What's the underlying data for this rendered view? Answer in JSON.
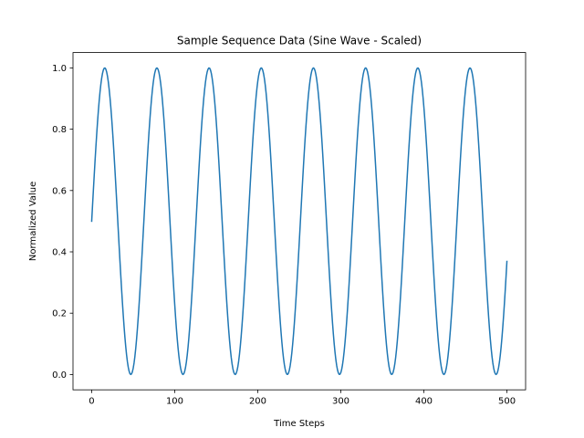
{
  "chart_data": {
    "type": "line",
    "title": "Sample Sequence Data (Sine Wave - Scaled)",
    "xlabel": "Time Steps",
    "ylabel": "Normalized Value",
    "xlim": [
      -22.5,
      522.5
    ],
    "ylim": [
      -0.05,
      1.05
    ],
    "x_ticks": [
      0,
      100,
      200,
      300,
      400,
      500
    ],
    "x_tick_labels": [
      "0",
      "100",
      "200",
      "300",
      "400",
      "500"
    ],
    "y_ticks": [
      0.0,
      0.2,
      0.4,
      0.6,
      0.8,
      1.0
    ],
    "y_tick_labels": [
      "0.0",
      "0.2",
      "0.4",
      "0.6",
      "0.8",
      "1.0"
    ],
    "grid": false,
    "series": [
      {
        "color": "#1f77b4",
        "function": "0.5 + 0.5*sin(0.1*t)",
        "x_start": 0,
        "x_end": 500,
        "x_step": 1,
        "sample_points": [
          {
            "x": 0,
            "y": 0.5
          },
          {
            "x": 16,
            "y": 1.0
          },
          {
            "x": 47,
            "y": 0.0
          },
          {
            "x": 79,
            "y": 1.0
          },
          {
            "x": 110,
            "y": 0.0
          },
          {
            "x": 141,
            "y": 1.0
          },
          {
            "x": 173,
            "y": 0.0
          },
          {
            "x": 204,
            "y": 1.0
          },
          {
            "x": 236,
            "y": 0.0
          },
          {
            "x": 267,
            "y": 1.0
          },
          {
            "x": 298,
            "y": 0.0
          },
          {
            "x": 330,
            "y": 1.0
          },
          {
            "x": 361,
            "y": 0.0
          },
          {
            "x": 393,
            "y": 1.0
          },
          {
            "x": 424,
            "y": 0.0
          },
          {
            "x": 456,
            "y": 1.0
          },
          {
            "x": 487,
            "y": 0.0
          },
          {
            "x": 500,
            "y": 0.37
          }
        ]
      }
    ]
  }
}
